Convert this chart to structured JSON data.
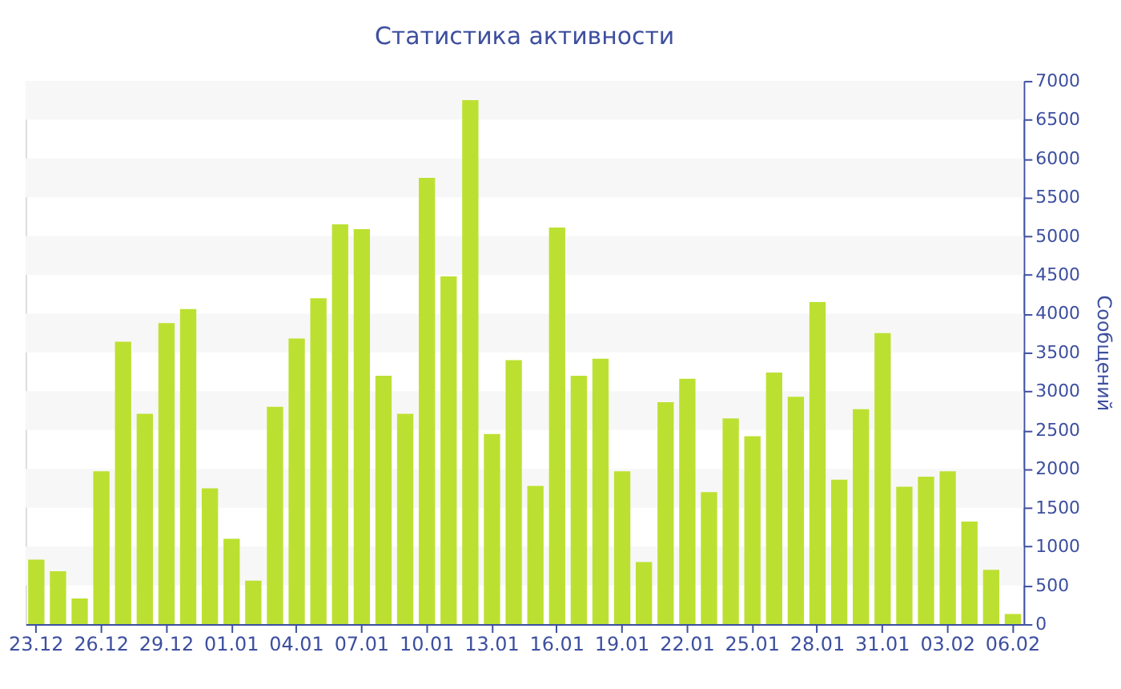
{
  "chart_data": {
    "type": "bar",
    "title": "Статистика активности",
    "ylabel": "Сообщений",
    "categories": [
      "23.12",
      null,
      null,
      "26.12",
      null,
      null,
      "29.12",
      null,
      null,
      "01.01",
      null,
      null,
      "04.01",
      null,
      null,
      "07.01",
      null,
      null,
      "10.01",
      null,
      null,
      "13.01",
      null,
      null,
      "16.01",
      null,
      null,
      "19.01",
      null,
      null,
      "22.01",
      null,
      null,
      "25.01",
      null,
      null,
      "28.01",
      null,
      null,
      "31.01",
      null,
      null,
      "03.02",
      null,
      null,
      "06.02"
    ],
    "values": [
      830,
      680,
      330,
      1970,
      3640,
      2710,
      3880,
      4060,
      1750,
      1100,
      560,
      2800,
      3680,
      4200,
      5150,
      5090,
      3200,
      2710,
      5750,
      4480,
      6750,
      2450,
      3400,
      1780,
      5110,
      3200,
      3420,
      1970,
      800,
      2860,
      3160,
      1700,
      2650,
      2420,
      3240,
      2930,
      4150,
      1860,
      2770,
      3750,
      1770,
      1900,
      1970,
      1320,
      700,
      130
    ],
    "color": "#bce031",
    "ylim": [
      0,
      7000
    ],
    "yticks": [
      0,
      500,
      1000,
      1500,
      2000,
      2500,
      3000,
      3500,
      4000,
      4500,
      5000,
      5500,
      6000,
      6500,
      7000
    ],
    "bands": [
      {
        "axis": "y",
        "from": 500,
        "to": 1000,
        "color": "#f7f7f7"
      },
      {
        "axis": "y",
        "from": 1500,
        "to": 2000,
        "color": "#f7f7f7"
      },
      {
        "axis": "y",
        "from": 2500,
        "to": 3000,
        "color": "#f7f7f7"
      },
      {
        "axis": "y",
        "from": 3500,
        "to": 4000,
        "color": "#f7f7f7"
      },
      {
        "axis": "y",
        "from": 4500,
        "to": 5000,
        "color": "#f7f7f7"
      },
      {
        "axis": "y",
        "from": 5500,
        "to": 6000,
        "color": "#f7f7f7"
      },
      {
        "axis": "y",
        "from": 6500,
        "to": 7000,
        "color": "#f7f7f7"
      }
    ],
    "grid": false
  }
}
